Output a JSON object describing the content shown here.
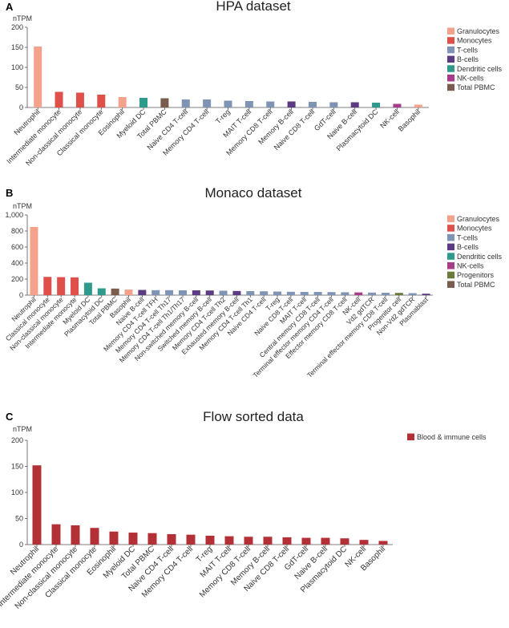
{
  "colors": {
    "granulocytes": "#F4A28C",
    "monocytes": "#E0504A",
    "t_cells": "#7F93B5",
    "b_cells": "#5C3B82",
    "dendritic_cells": "#2E9A8C",
    "nk_cells": "#A83A8A",
    "progenitors": "#6A7A38",
    "total_pbmc": "#7A5C4C",
    "blood_immune": "#B23036"
  },
  "chart_data": [
    {
      "panel_label": "A",
      "type": "bar",
      "title": "HPA dataset",
      "ylabel": "nTPM",
      "ylim": [
        0,
        200
      ],
      "yticks": [
        "0",
        "50",
        "100",
        "150",
        "200"
      ],
      "ytick_values": [
        0,
        50,
        100,
        150,
        200
      ],
      "categories": [
        "Neutrophil",
        "Intermediate monocyte",
        "Non-classical monocyte",
        "Classical monocyte",
        "Eosinophil",
        "Myeloid DC",
        "Total PBMC",
        "Naive CD4 T-cell",
        "Memory CD4 T-cell",
        "T-reg",
        "MAIT T-cell",
        "Memory CD8 T-cell",
        "Memory B-cell",
        "Naive CD8 T-cell",
        "GdT-cell",
        "Naive B-cell",
        "Plasmacytoid DC",
        "NK-cell",
        "Basophil"
      ],
      "values": [
        152,
        39,
        37,
        32,
        26,
        24,
        23,
        20,
        20,
        17,
        16,
        15,
        15,
        14,
        13,
        13,
        12,
        9,
        7
      ],
      "groups": [
        "granulocytes",
        "monocytes",
        "monocytes",
        "monocytes",
        "granulocytes",
        "dendritic_cells",
        "total_pbmc",
        "t_cells",
        "t_cells",
        "t_cells",
        "t_cells",
        "t_cells",
        "b_cells",
        "t_cells",
        "t_cells",
        "b_cells",
        "dendritic_cells",
        "nk_cells",
        "granulocytes"
      ],
      "legend": [
        {
          "label": "Granulocytes",
          "color": "granulocytes"
        },
        {
          "label": "Monocytes",
          "color": "monocytes"
        },
        {
          "label": "T-cells",
          "color": "t_cells"
        },
        {
          "label": "B-cells",
          "color": "b_cells"
        },
        {
          "label": "Dendritic cells",
          "color": "dendritic_cells"
        },
        {
          "label": "NK-cells",
          "color": "nk_cells"
        },
        {
          "label": "Total PBMC",
          "color": "total_pbmc"
        }
      ]
    },
    {
      "panel_label": "B",
      "type": "bar",
      "title": "Monaco dataset",
      "ylabel": "nTPM",
      "ylim": [
        0,
        1000
      ],
      "yticks": [
        "0",
        "200",
        "400",
        "600",
        "800",
        "1,000"
      ],
      "ytick_values": [
        0,
        200,
        400,
        600,
        800,
        1000
      ],
      "categories": [
        "Neutrophil",
        "Classical monocyte",
        "Non-classical monocyte",
        "Intermediate monocyte",
        "Myeloid DC",
        "Plasmacytoid DC",
        "Total PBMC",
        "Basophil",
        "Naive B-cell",
        "Memory CD4 T-cell TFH",
        "Memory CD4 T-cell Th17",
        "Memory CD4 T-cell Th1/Th17",
        "Non-switched memory B-cell",
        "Switched memory B-cell",
        "Memory CD4 T-cell Th2",
        "Exhausted memory B-cell",
        "Memory CD4 T-cell Th1",
        "Naive CD4 T-cell",
        "T-reg",
        "Naive CD8 T-cell",
        "MAIT T-cell",
        "Central memory CD8 T-cell",
        "Terminal effector memory CD4 T-cell",
        "Effector memory CD8 T-cell",
        "NK-cell",
        "Vd2 gdTCR",
        "Terminal effector memory CD8 T-cell",
        "Progenitor cell",
        "Non-Vd2 gdTCR",
        "Plasmablast"
      ],
      "values": [
        850,
        228,
        225,
        222,
        155,
        85,
        82,
        70,
        65,
        62,
        62,
        60,
        60,
        58,
        55,
        52,
        50,
        48,
        45,
        42,
        40,
        40,
        38,
        36,
        34,
        32,
        30,
        28,
        25,
        18
      ],
      "groups": [
        "granulocytes",
        "monocytes",
        "monocytes",
        "monocytes",
        "dendritic_cells",
        "dendritic_cells",
        "total_pbmc",
        "granulocytes",
        "b_cells",
        "t_cells",
        "t_cells",
        "t_cells",
        "b_cells",
        "b_cells",
        "t_cells",
        "b_cells",
        "t_cells",
        "t_cells",
        "t_cells",
        "t_cells",
        "t_cells",
        "t_cells",
        "t_cells",
        "t_cells",
        "nk_cells",
        "t_cells",
        "t_cells",
        "progenitors",
        "t_cells",
        "b_cells"
      ],
      "legend": [
        {
          "label": "Granulocytes",
          "color": "granulocytes"
        },
        {
          "label": "Monocytes",
          "color": "monocytes"
        },
        {
          "label": "T-cells",
          "color": "t_cells"
        },
        {
          "label": "B-cells",
          "color": "b_cells"
        },
        {
          "label": "Dendritic cells",
          "color": "dendritic_cells"
        },
        {
          "label": "NK-cells",
          "color": "nk_cells"
        },
        {
          "label": "Progenitors",
          "color": "progenitors"
        },
        {
          "label": "Total PBMC",
          "color": "total_pbmc"
        }
      ]
    },
    {
      "panel_label": "C",
      "type": "bar",
      "title": "Flow sorted data",
      "ylabel": "nTPM",
      "ylim": [
        0,
        200
      ],
      "yticks": [
        "0",
        "50",
        "100",
        "150",
        "200"
      ],
      "ytick_values": [
        0,
        50,
        100,
        150,
        200
      ],
      "categories": [
        "Neutrophil",
        "Intermediate monocyte",
        "Non-classical monocyte",
        "Classical monocyte",
        "Eosinophil",
        "Myeloid DC",
        "Total PBMC",
        "Naive CD4 T-cell",
        "Memory CD4 T-cell",
        "T-reg",
        "MAIT T-cell",
        "Memory CD8 T-cell",
        "Memory B-cell",
        "Naive CD8 T-cell",
        "GdT-cell",
        "Naive B-cell",
        "Plasmacytoid DC",
        "NK-cell",
        "Basophil"
      ],
      "values": [
        152,
        39,
        37,
        32,
        25,
        23,
        22,
        20,
        19,
        17,
        16,
        15,
        15,
        14,
        13,
        13,
        12,
        9,
        7
      ],
      "groups": [
        "blood_immune",
        "blood_immune",
        "blood_immune",
        "blood_immune",
        "blood_immune",
        "blood_immune",
        "blood_immune",
        "blood_immune",
        "blood_immune",
        "blood_immune",
        "blood_immune",
        "blood_immune",
        "blood_immune",
        "blood_immune",
        "blood_immune",
        "blood_immune",
        "blood_immune",
        "blood_immune",
        "blood_immune"
      ],
      "legend": [
        {
          "label": "Blood & immune cells",
          "color": "blood_immune"
        }
      ]
    }
  ]
}
